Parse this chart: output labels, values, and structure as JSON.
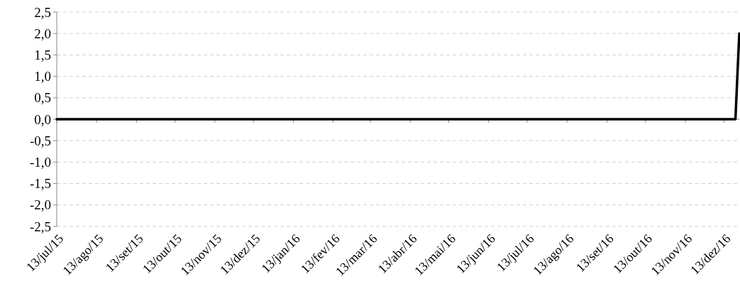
{
  "chart_data": {
    "type": "line",
    "series": [
      {
        "color": "#000000",
        "x": [
          "2015-07-13",
          "2016-12-22",
          "2016-12-25"
        ],
        "values": [
          0,
          0,
          2.0
        ]
      }
    ],
    "xlim": [
      "2015-07-13",
      "2016-12-25"
    ],
    "xticks": [
      {
        "value": "2015-07-13",
        "label": "13/jul/15"
      },
      {
        "value": "2015-08-13",
        "label": "13/ago/15"
      },
      {
        "value": "2015-09-13",
        "label": "13/set/15"
      },
      {
        "value": "2015-10-13",
        "label": "13/out/15"
      },
      {
        "value": "2015-11-13",
        "label": "13/nov/15"
      },
      {
        "value": "2015-12-13",
        "label": "13/dez/15"
      },
      {
        "value": "2016-01-13",
        "label": "13/jan/16"
      },
      {
        "value": "2016-02-13",
        "label": "13/fev/16"
      },
      {
        "value": "2016-03-13",
        "label": "13/mar/16"
      },
      {
        "value": "2016-04-13",
        "label": "13/abr/16"
      },
      {
        "value": "2016-05-13",
        "label": "13/mai/16"
      },
      {
        "value": "2016-06-13",
        "label": "13/jun/16"
      },
      {
        "value": "2016-07-13",
        "label": "13/jul/16"
      },
      {
        "value": "2016-08-13",
        "label": "13/ago/16"
      },
      {
        "value": "2016-09-13",
        "label": "13/set/16"
      },
      {
        "value": "2016-10-13",
        "label": "13/out/16"
      },
      {
        "value": "2016-11-13",
        "label": "13/nov/16"
      },
      {
        "value": "2016-12-13",
        "label": "13/dez/16"
      }
    ],
    "ylim": [
      -2.5,
      2.5
    ],
    "yticks": [
      {
        "value": -2.5,
        "label": "-2,5"
      },
      {
        "value": -2,
        "label": "-2,0"
      },
      {
        "value": -1.5,
        "label": "-1,5"
      },
      {
        "value": -1,
        "label": "-1,0"
      },
      {
        "value": -0.5,
        "label": "-0,5"
      },
      {
        "value": 0,
        "label": "0,0"
      },
      {
        "value": 0.5,
        "label": "0,5"
      },
      {
        "value": 1,
        "label": "1,0"
      },
      {
        "value": 1.5,
        "label": "1,5"
      },
      {
        "value": 2,
        "label": "2,0"
      },
      {
        "value": 2.5,
        "label": "2,5"
      }
    ],
    "grid": "y",
    "marker": "none",
    "line_style": "solid"
  }
}
